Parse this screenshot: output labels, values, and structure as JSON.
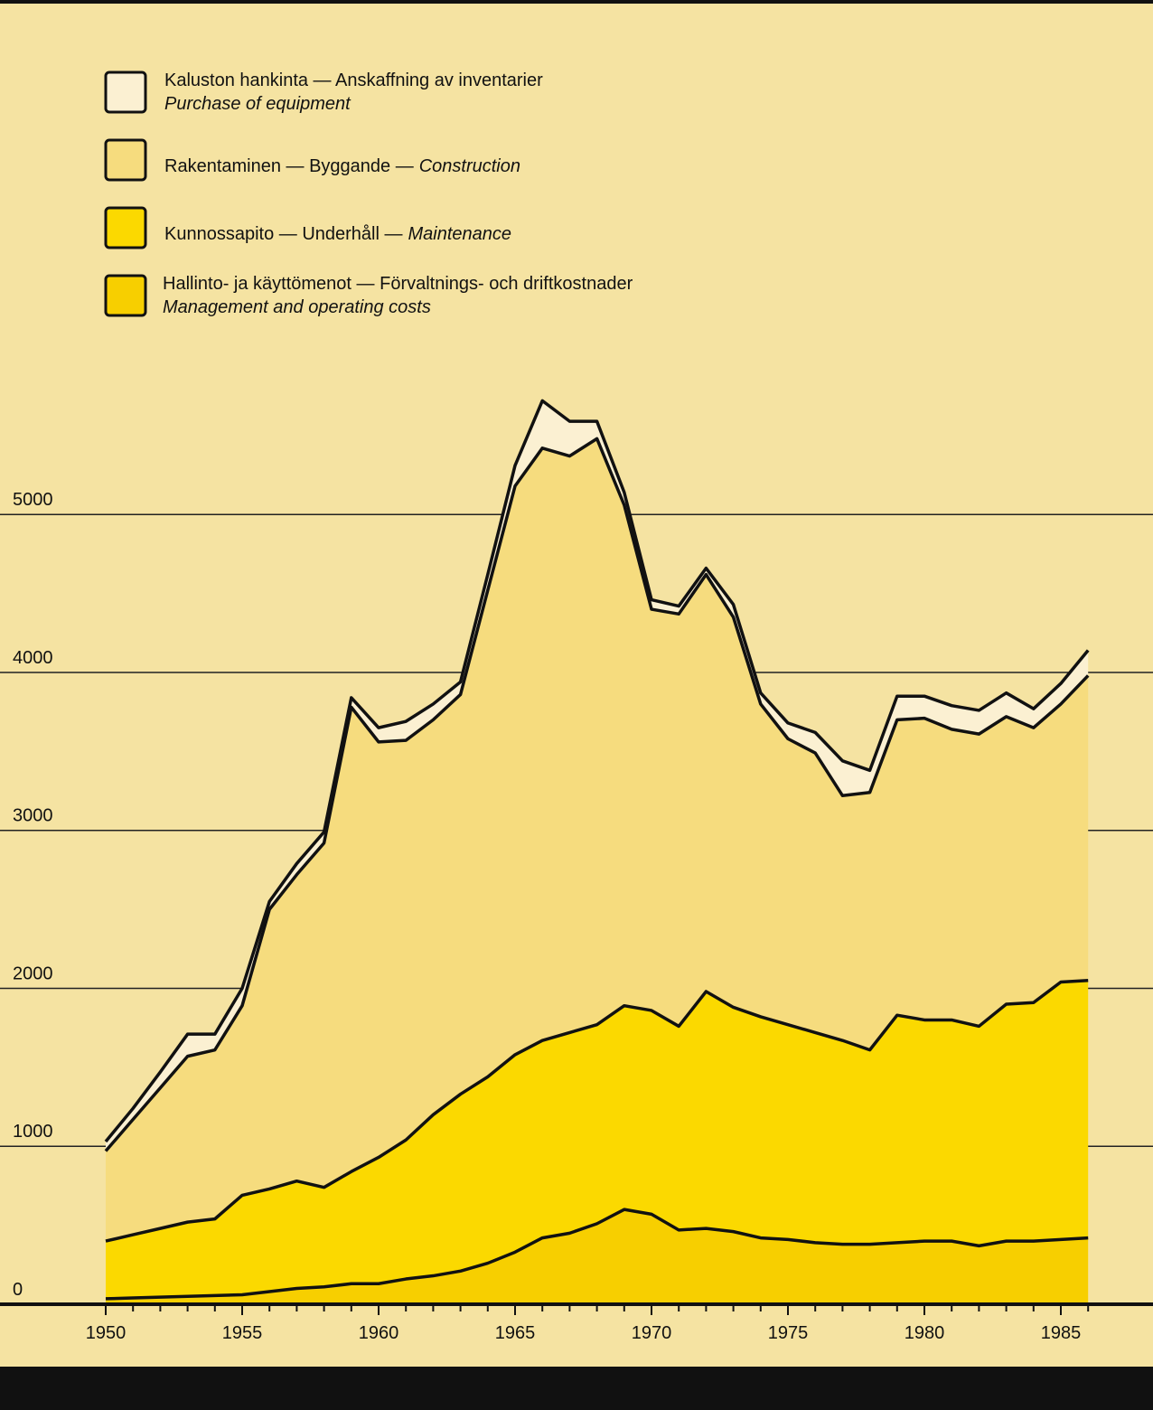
{
  "chart_data": {
    "type": "stacked_area",
    "x": [
      1950,
      1951,
      1952,
      1953,
      1954,
      1955,
      1956,
      1957,
      1958,
      1959,
      1960,
      1961,
      1962,
      1963,
      1964,
      1965,
      1966,
      1967,
      1968,
      1969,
      1970,
      1971,
      1972,
      1973,
      1974,
      1975,
      1976,
      1977,
      1978,
      1979,
      1980,
      1981,
      1982,
      1983,
      1984,
      1985,
      1986
    ],
    "series": [
      {
        "name": "Kaluston hankinta — Anskaffning av inventarier",
        "name_en": "Purchase of equipment",
        "color": "#fbf0d2",
        "values": [
          60,
          70,
          100,
          140,
          100,
          110,
          50,
          70,
          70,
          60,
          90,
          120,
          100,
          80,
          100,
          130,
          300,
          220,
          110,
          80,
          60,
          50,
          40,
          80,
          70,
          100,
          130,
          220,
          140,
          150,
          140,
          150,
          150,
          150,
          120,
          130,
          160
        ]
      },
      {
        "name": "Rakentaminen — Byggande —",
        "name_en": "Construction",
        "color": "#f6dc7e",
        "values": [
          570,
          730,
          890,
          1050,
          1070,
          1200,
          1770,
          1940,
          2180,
          2940,
          2630,
          2530,
          2500,
          2530,
          3080,
          3600,
          3750,
          3650,
          3710,
          3170,
          2540,
          2610,
          2640,
          2470,
          1980,
          1810,
          1770,
          1550,
          1630,
          1870,
          1910,
          1840,
          1850,
          1820,
          1740,
          1760,
          1930
        ]
      },
      {
        "name": "Kunnossapito — Underhåll —",
        "name_en": "Maintenance",
        "color": "#fbd900",
        "values": [
          365,
          400,
          435,
          470,
          485,
          630,
          650,
          680,
          630,
          710,
          800,
          880,
          1020,
          1120,
          1180,
          1250,
          1250,
          1270,
          1260,
          1290,
          1290,
          1290,
          1500,
          1420,
          1400,
          1360,
          1330,
          1290,
          1230,
          1440,
          1400,
          1400,
          1390,
          1500,
          1510,
          1630,
          1630
        ]
      },
      {
        "name": "Hallinto- ja käyttömenot — Förvaltnings- och driftkostnader",
        "name_en": "Management and operating costs",
        "color": "#f7cf00",
        "values": [
          35,
          40,
          45,
          50,
          55,
          60,
          80,
          100,
          110,
          130,
          130,
          160,
          180,
          210,
          260,
          330,
          420,
          450,
          510,
          600,
          570,
          470,
          480,
          460,
          420,
          410,
          390,
          380,
          380,
          390,
          400,
          400,
          370,
          400,
          400,
          410,
          420
        ]
      }
    ],
    "xlim": [
      1950,
      1985
    ],
    "xticks": [
      1950,
      1955,
      1960,
      1965,
      1970,
      1975,
      1980,
      1985
    ],
    "ylim": [
      0,
      8200
    ],
    "yticks": [
      0,
      1000,
      2000,
      3000,
      4000,
      5000
    ],
    "grid": true
  }
}
